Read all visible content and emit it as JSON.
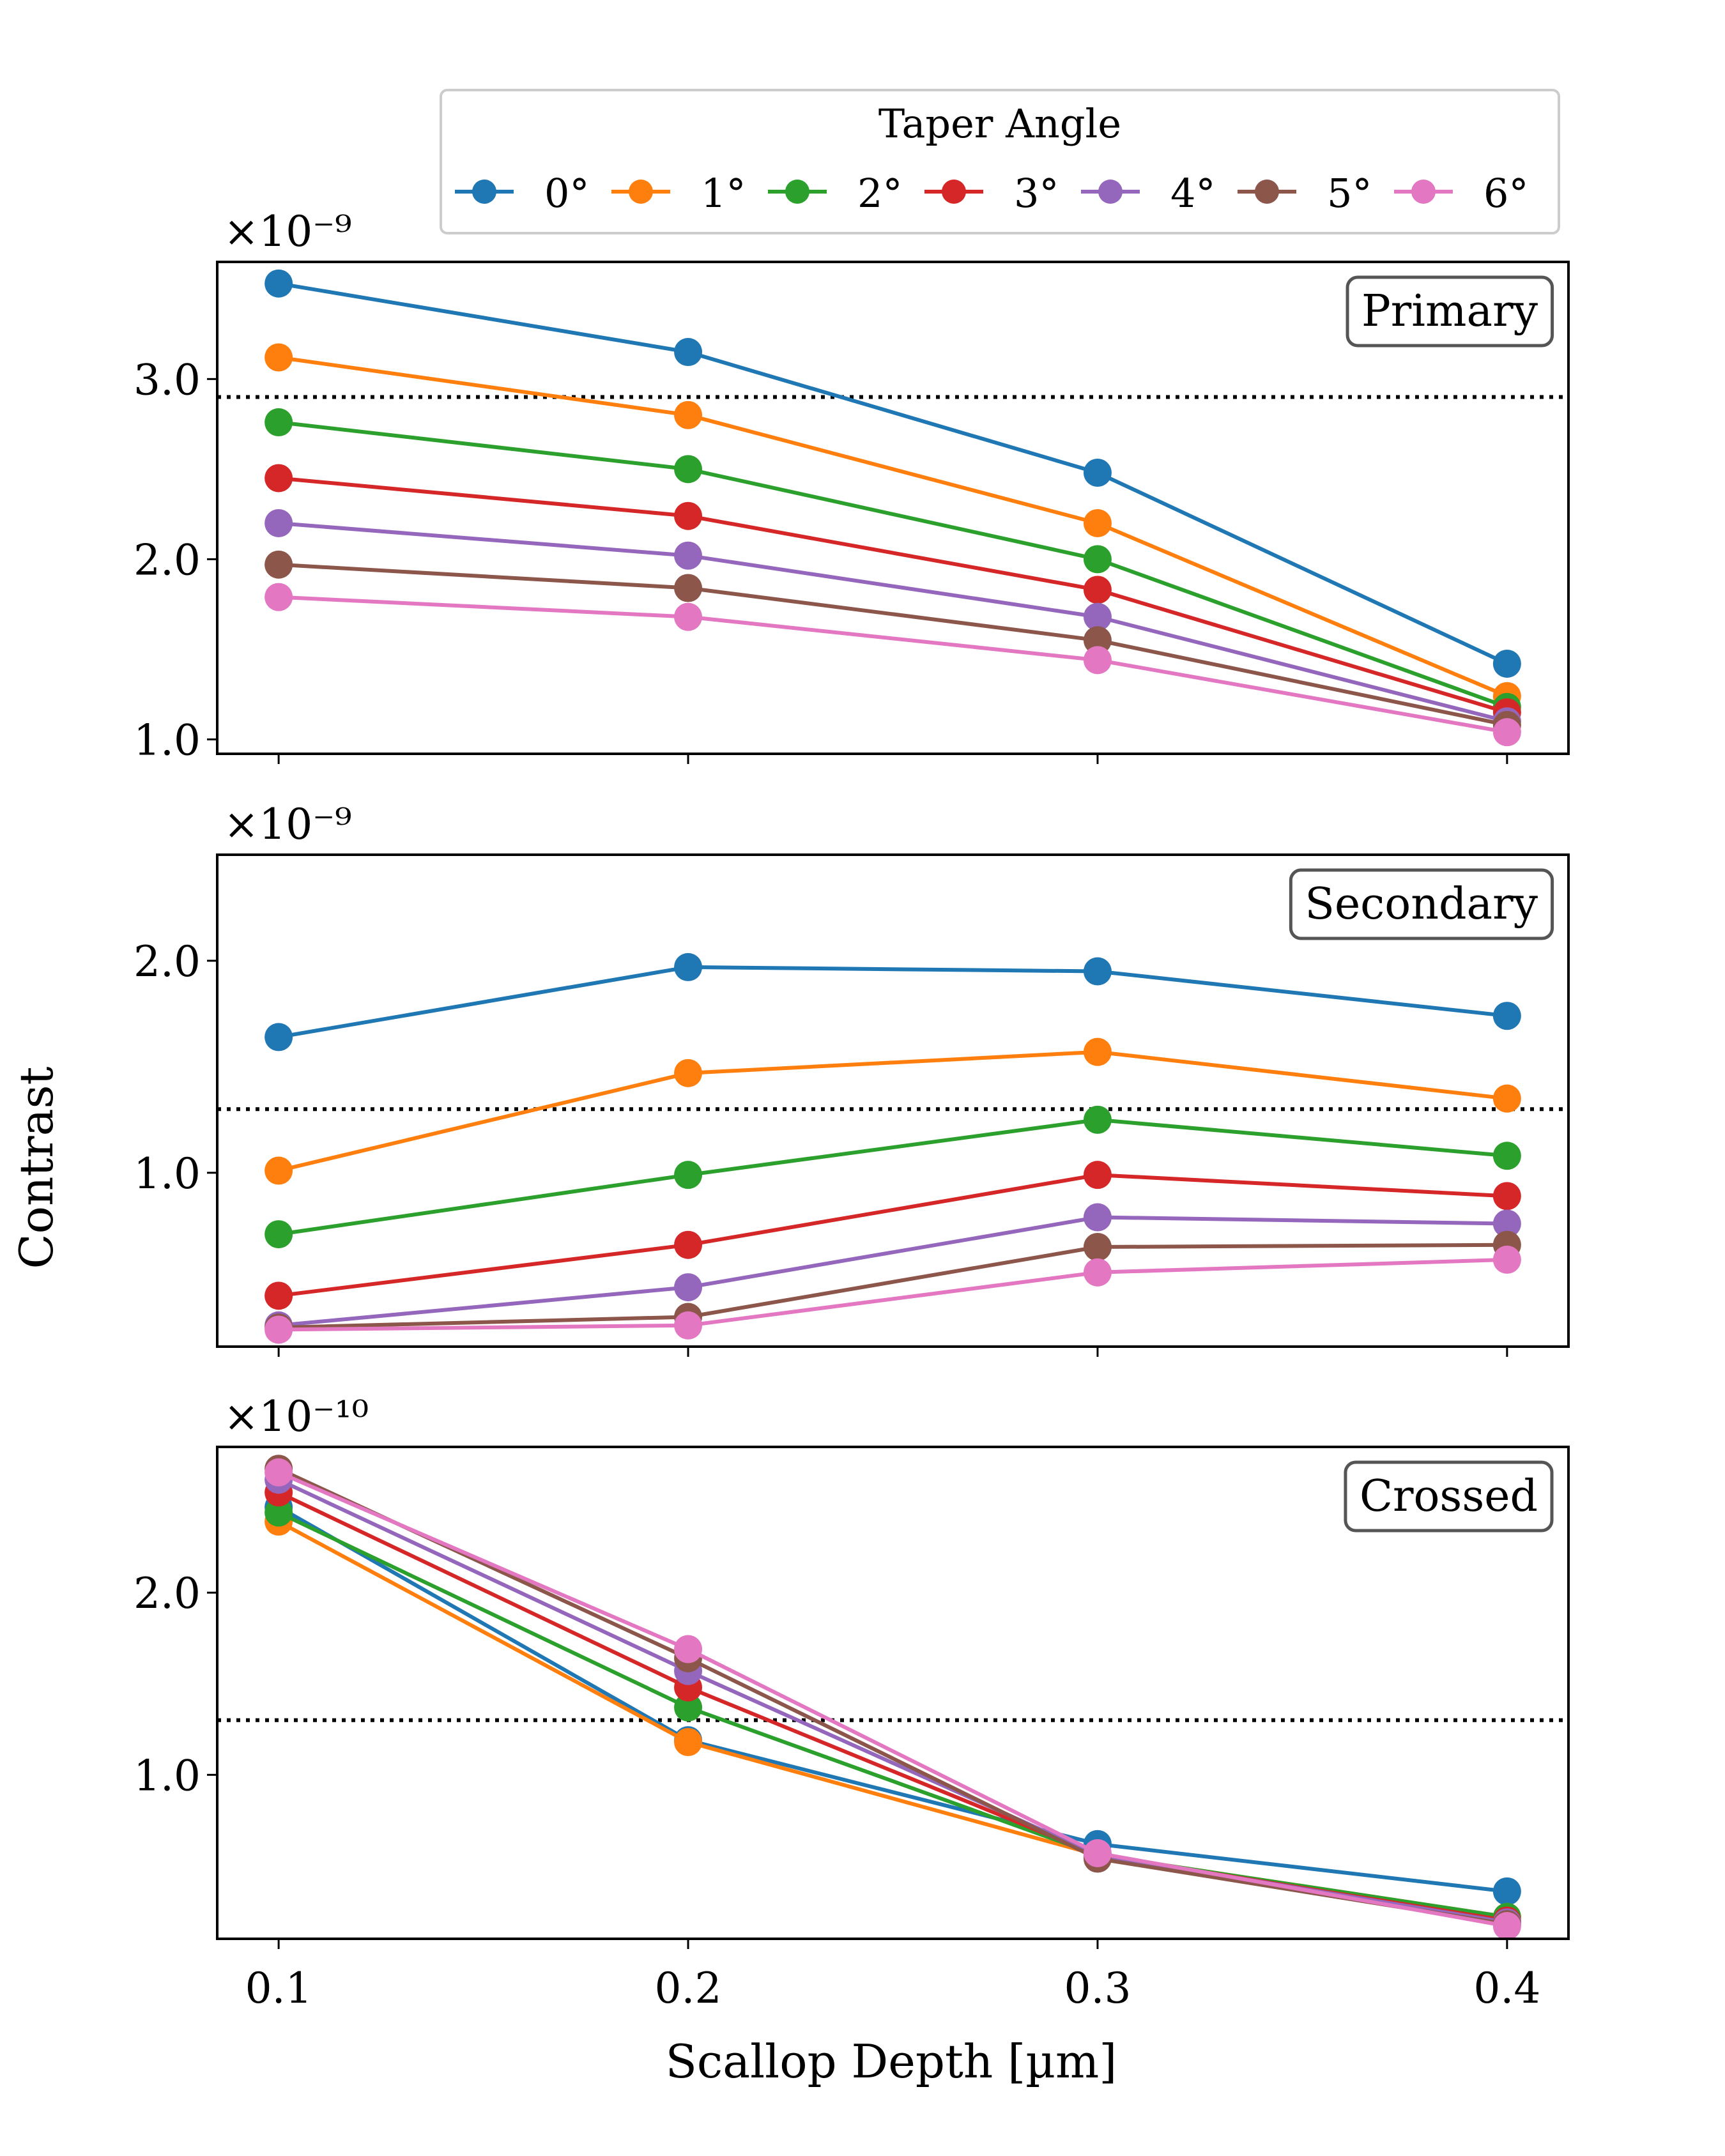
{
  "chart_data": {
    "type": "line",
    "xlabel": "Scallop Depth [µm]",
    "ylabel": "Contrast",
    "legend": {
      "title": "Taper Angle",
      "placement": "top",
      "entries": [
        "0°",
        "1°",
        "2°",
        "3°",
        "4°",
        "5°",
        "6°"
      ]
    },
    "x": [
      0.1,
      0.2,
      0.3,
      0.4
    ],
    "xtick_labels": [
      "0.1",
      "0.2",
      "0.3",
      "0.4"
    ],
    "series_colors": [
      "#1f77b4",
      "#ff7f0e",
      "#2ca02c",
      "#d62728",
      "#9467bd",
      "#8c564b",
      "#e377c2"
    ],
    "panels": [
      {
        "label": "Primary",
        "scale_label": "×10⁻⁹",
        "ylim": [
          0.92,
          3.65
        ],
        "yticks": [
          1.0,
          2.0,
          3.0
        ],
        "ytick_labels": [
          "1.0",
          "2.0",
          "3.0"
        ],
        "reference_line": 2.9,
        "series": [
          {
            "name": "0°",
            "values": [
              3.53,
              3.15,
              2.48,
              1.42
            ]
          },
          {
            "name": "1°",
            "values": [
              3.12,
              2.8,
              2.2,
              1.24
            ]
          },
          {
            "name": "2°",
            "values": [
              2.76,
              2.5,
              2.0,
              1.18
            ]
          },
          {
            "name": "3°",
            "values": [
              2.45,
              2.24,
              1.83,
              1.15
            ]
          },
          {
            "name": "4°",
            "values": [
              2.2,
              2.02,
              1.68,
              1.1
            ]
          },
          {
            "name": "5°",
            "values": [
              1.97,
              1.84,
              1.55,
              1.08
            ]
          },
          {
            "name": "6°",
            "values": [
              1.79,
              1.68,
              1.44,
              1.04
            ]
          }
        ]
      },
      {
        "label": "Secondary",
        "scale_label": "×10⁻⁹",
        "ylim": [
          0.18,
          2.5
        ],
        "yticks": [
          1.0,
          2.0
        ],
        "ytick_labels": [
          "1.0",
          "2.0"
        ],
        "reference_line": 1.3,
        "series": [
          {
            "name": "0°",
            "values": [
              1.64,
              1.97,
              1.95,
              1.74
            ]
          },
          {
            "name": "1°",
            "values": [
              1.01,
              1.47,
              1.57,
              1.35
            ]
          },
          {
            "name": "2°",
            "values": [
              0.71,
              0.99,
              1.25,
              1.08
            ]
          },
          {
            "name": "3°",
            "values": [
              0.42,
              0.66,
              0.99,
              0.89
            ]
          },
          {
            "name": "4°",
            "values": [
              0.28,
              0.46,
              0.79,
              0.76
            ]
          },
          {
            "name": "5°",
            "values": [
              0.27,
              0.32,
              0.65,
              0.66
            ]
          },
          {
            "name": "6°",
            "values": [
              0.26,
              0.28,
              0.53,
              0.59
            ]
          }
        ]
      },
      {
        "label": "Crossed",
        "scale_label": "×10⁻¹⁰",
        "ylim": [
          0.1,
          2.8
        ],
        "yticks": [
          1.0,
          2.0
        ],
        "ytick_labels": [
          "1.0",
          "2.0"
        ],
        "reference_line": 1.3,
        "series": [
          {
            "name": "0°",
            "values": [
              2.47,
              1.19,
              0.62,
              0.36
            ]
          },
          {
            "name": "1°",
            "values": [
              2.39,
              1.18,
              0.56,
              0.22
            ]
          },
          {
            "name": "2°",
            "values": [
              2.44,
              1.37,
              0.56,
              0.22
            ]
          },
          {
            "name": "3°",
            "values": [
              2.55,
              1.48,
              0.56,
              0.2
            ]
          },
          {
            "name": "4°",
            "values": [
              2.62,
              1.57,
              0.56,
              0.19
            ]
          },
          {
            "name": "5°",
            "values": [
              2.68,
              1.64,
              0.54,
              0.18
            ]
          },
          {
            "name": "6°",
            "values": [
              2.66,
              1.69,
              0.57,
              0.17
            ]
          }
        ]
      }
    ]
  }
}
